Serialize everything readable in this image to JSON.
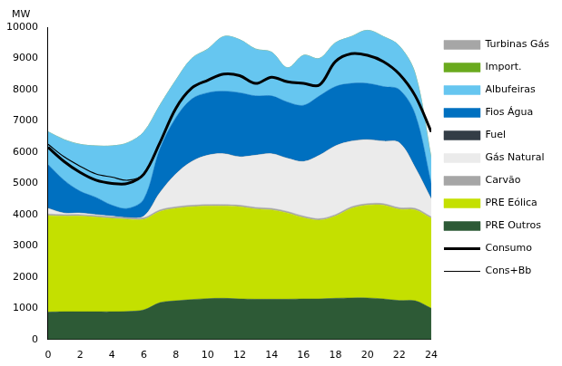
{
  "chart_data": {
    "type": "stacked_area",
    "ylabel": "MW",
    "x": [
      0,
      1,
      2,
      3,
      4,
      5,
      6,
      7,
      8,
      9,
      10,
      11,
      12,
      13,
      14,
      15,
      16,
      17,
      18,
      19,
      20,
      21,
      22,
      23,
      24
    ],
    "xlim": [
      0,
      24
    ],
    "xticks": [
      0,
      2,
      4,
      6,
      8,
      10,
      12,
      14,
      16,
      18,
      20,
      22,
      24
    ],
    "ylim": [
      0,
      10000
    ],
    "yticks": [
      0,
      1000,
      2000,
      3000,
      4000,
      5000,
      6000,
      7000,
      8000,
      9000,
      10000
    ],
    "grid": false,
    "stacked": true,
    "legend": "right",
    "series": [
      {
        "name": "PRE Outros",
        "color": "#2d5a36",
        "type": "area",
        "values": [
          880,
          890,
          890,
          890,
          890,
          900,
          950,
          1180,
          1240,
          1280,
          1310,
          1320,
          1300,
          1290,
          1290,
          1290,
          1300,
          1300,
          1320,
          1330,
          1330,
          1300,
          1250,
          1240,
          1000
        ]
      },
      {
        "name": "PRE Eólica",
        "color": "#c4e000",
        "type": "area",
        "values": [
          3090,
          3060,
          3060,
          3030,
          2990,
          2950,
          2900,
          2920,
          2960,
          2970,
          2960,
          2950,
          2950,
          2890,
          2860,
          2760,
          2600,
          2520,
          2630,
          2870,
          2970,
          3000,
          2920,
          2910,
          2880
        ]
      },
      {
        "name": "Carvão",
        "color": "#a6a6a6",
        "type": "area",
        "values": [
          50,
          50,
          50,
          50,
          50,
          50,
          50,
          50,
          50,
          50,
          50,
          50,
          50,
          50,
          50,
          50,
          50,
          50,
          50,
          50,
          50,
          50,
          50,
          50,
          50
        ]
      },
      {
        "name": "Gás Natural",
        "color": "#ebebeb",
        "type": "area",
        "values": [
          180,
          50,
          50,
          30,
          20,
          0,
          50,
          550,
          1050,
          1400,
          1580,
          1630,
          1550,
          1670,
          1750,
          1700,
          1750,
          2030,
          2200,
          2100,
          2050,
          2000,
          2080,
          1300,
          570
        ]
      },
      {
        "name": "Fuel",
        "color": "#333d46",
        "type": "area",
        "values": [
          0,
          0,
          0,
          0,
          0,
          0,
          0,
          0,
          0,
          0,
          0,
          0,
          0,
          0,
          0,
          0,
          0,
          0,
          0,
          0,
          0,
          0,
          0,
          0,
          0
        ]
      },
      {
        "name": "Fios Água",
        "color": "#0070c0",
        "type": "area",
        "values": [
          1400,
          1050,
          700,
          550,
          350,
          300,
          550,
          1400,
          1800,
          2000,
          2000,
          2000,
          2050,
          1900,
          1850,
          1800,
          1800,
          1900,
          1900,
          1850,
          1800,
          1750,
          1700,
          1700,
          500
        ]
      },
      {
        "name": "Albufeiras",
        "color": "#66c6f0",
        "type": "area",
        "values": [
          1050,
          1300,
          1500,
          1650,
          1900,
          2100,
          2150,
          1400,
          1200,
          1300,
          1400,
          1750,
          1700,
          1500,
          1400,
          1100,
          1600,
          1200,
          1400,
          1500,
          1700,
          1600,
          1400,
          1300,
          800
        ]
      },
      {
        "name": "Import.",
        "color": "#6aaa1e",
        "type": "area",
        "values": [
          0,
          0,
          0,
          0,
          0,
          0,
          0,
          0,
          0,
          0,
          0,
          0,
          0,
          0,
          0,
          0,
          0,
          0,
          0,
          0,
          0,
          0,
          0,
          0,
          0
        ]
      },
      {
        "name": "Turbinas Gás",
        "color": "#a6a6a6",
        "type": "area",
        "values": [
          0,
          0,
          0,
          0,
          0,
          0,
          0,
          0,
          0,
          0,
          0,
          0,
          0,
          0,
          0,
          0,
          0,
          0,
          0,
          0,
          0,
          0,
          0,
          0,
          0
        ]
      },
      {
        "name": "Consumo",
        "color": "#000000",
        "type": "line",
        "line_style": "thick",
        "values": [
          6150,
          5700,
          5350,
          5100,
          5000,
          5000,
          5300,
          6300,
          7400,
          8050,
          8300,
          8500,
          8450,
          8200,
          8400,
          8250,
          8200,
          8150,
          8900,
          9150,
          9100,
          8900,
          8500,
          7800,
          6650
        ]
      },
      {
        "name": "Cons+Bb",
        "color": "#000000",
        "type": "line",
        "line_style": "thin",
        "values": [
          6250,
          5850,
          5550,
          5300,
          5200,
          5100,
          5300,
          6300,
          7400,
          8050,
          8300,
          8500,
          8450,
          8200,
          8400,
          8250,
          8200,
          8150,
          8900,
          9150,
          9100,
          8900,
          8500,
          7800,
          6650
        ]
      }
    ]
  }
}
